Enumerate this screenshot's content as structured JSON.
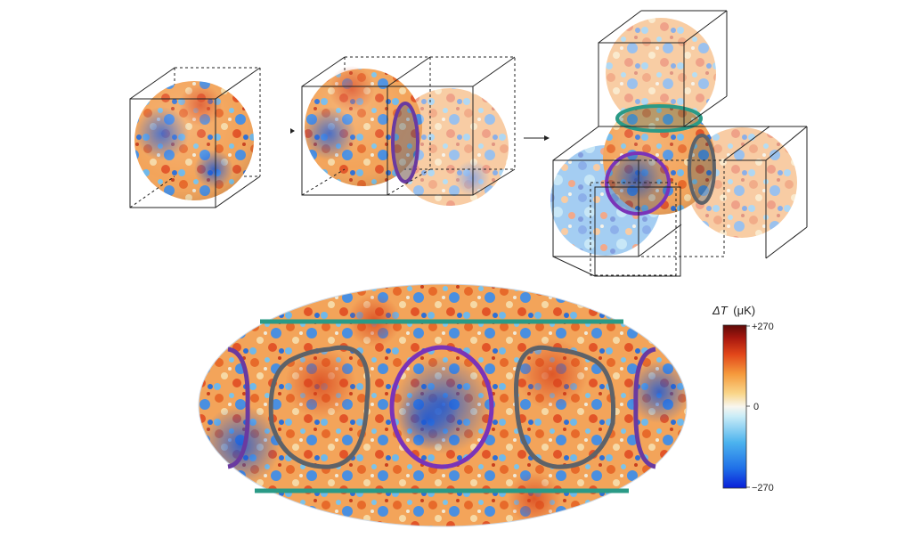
{
  "colorbar": {
    "quantity": "ΔT",
    "unit": "(μK)",
    "max_label": "+270",
    "mid_label": "0",
    "min_label": "−270",
    "colors": [
      "#0a1fd8",
      "#1f6fe8",
      "#4cb3ee",
      "#c9ecf7",
      "#f8f6ef",
      "#f9d68a",
      "#f59a3c",
      "#e2471a",
      "#a8180f",
      "#5e0a08"
    ]
  },
  "map_colors": {
    "palette": [
      "#1c49c8",
      "#2e7fe0",
      "#58b3ea",
      "#a9dcf1",
      "#efe8d4",
      "#f6c27e",
      "#f3903f",
      "#e2572a",
      "#c0381c"
    ],
    "ring_left_right": "#6a3aa0",
    "ring_center": "#7a33b8",
    "ring_gray": "#5e6268",
    "line_teal": "#2a9a86"
  },
  "diagram": {
    "panels": [
      "single-cube",
      "two-cubes",
      "four-cubes"
    ],
    "arrows": 2
  }
}
